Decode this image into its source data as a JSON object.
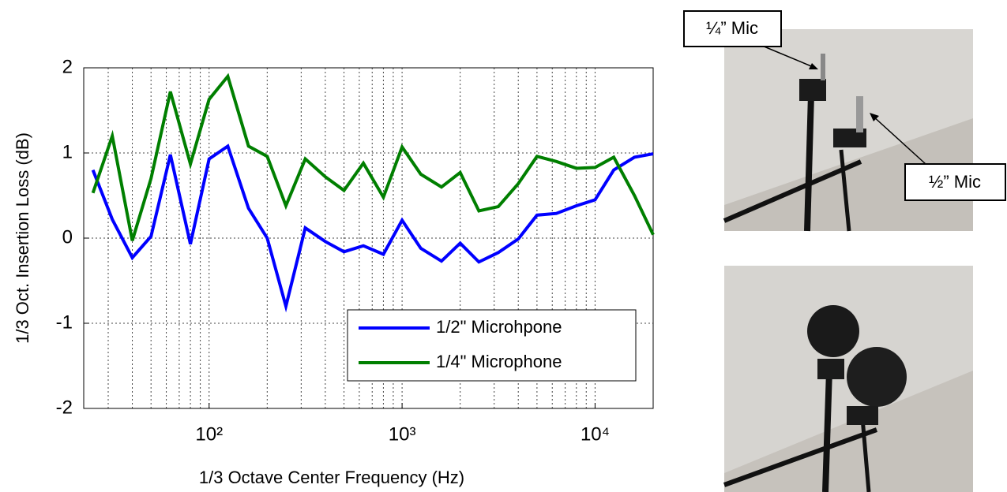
{
  "chart_data": {
    "type": "line",
    "xlabel": "1/3 Octave Center Frequency (Hz)",
    "ylabel": "1/3 Oct. Insertion Loss (dB)",
    "x": [
      25,
      31.5,
      40,
      50,
      63,
      80,
      100,
      125,
      160,
      200,
      250,
      315,
      400,
      500,
      630,
      800,
      1000,
      1250,
      1600,
      2000,
      2500,
      3150,
      4000,
      5000,
      6300,
      8000,
      10000,
      12500,
      16000,
      20000
    ],
    "series": [
      {
        "name": "1/2\" Microhpone",
        "color": "#0000ff",
        "values": [
          0.8,
          0.22,
          -0.23,
          0.02,
          0.98,
          -0.07,
          0.93,
          1.08,
          0.35,
          0.0,
          -0.8,
          0.12,
          -0.04,
          -0.16,
          -0.09,
          -0.19,
          0.21,
          -0.12,
          -0.27,
          -0.06,
          -0.28,
          -0.17,
          -0.01,
          0.27,
          0.29,
          0.38,
          0.45,
          0.8,
          0.95,
          0.99
        ]
      },
      {
        "name": "1/4\" Microphone",
        "color": "#007f00",
        "values": [
          0.53,
          1.2,
          -0.03,
          0.7,
          1.72,
          0.87,
          1.63,
          1.9,
          1.08,
          0.96,
          0.38,
          0.93,
          0.72,
          0.56,
          0.88,
          0.48,
          1.07,
          0.75,
          0.6,
          0.77,
          0.32,
          0.37,
          0.64,
          0.96,
          0.9,
          0.82,
          0.83,
          0.95,
          0.5,
          0.04
        ]
      }
    ],
    "xscale": "log",
    "xlim": [
      22.4,
      20000
    ],
    "xticks": [
      {
        "value": 100,
        "label": "10²"
      },
      {
        "value": 1000,
        "label": "10³"
      },
      {
        "value": 10000,
        "label": "10⁴"
      }
    ],
    "xminorticks": [
      30,
      40,
      50,
      60,
      70,
      80,
      90,
      200,
      300,
      400,
      500,
      600,
      700,
      800,
      900,
      2000,
      3000,
      4000,
      5000,
      6000,
      7000,
      8000,
      9000
    ],
    "ylim": [
      -2,
      2
    ],
    "yticks": [
      -2,
      -1,
      0,
      1,
      2
    ],
    "grid": true,
    "legend": "lower right",
    "annotations": [
      "¼” Mic",
      "½” Mic"
    ]
  }
}
